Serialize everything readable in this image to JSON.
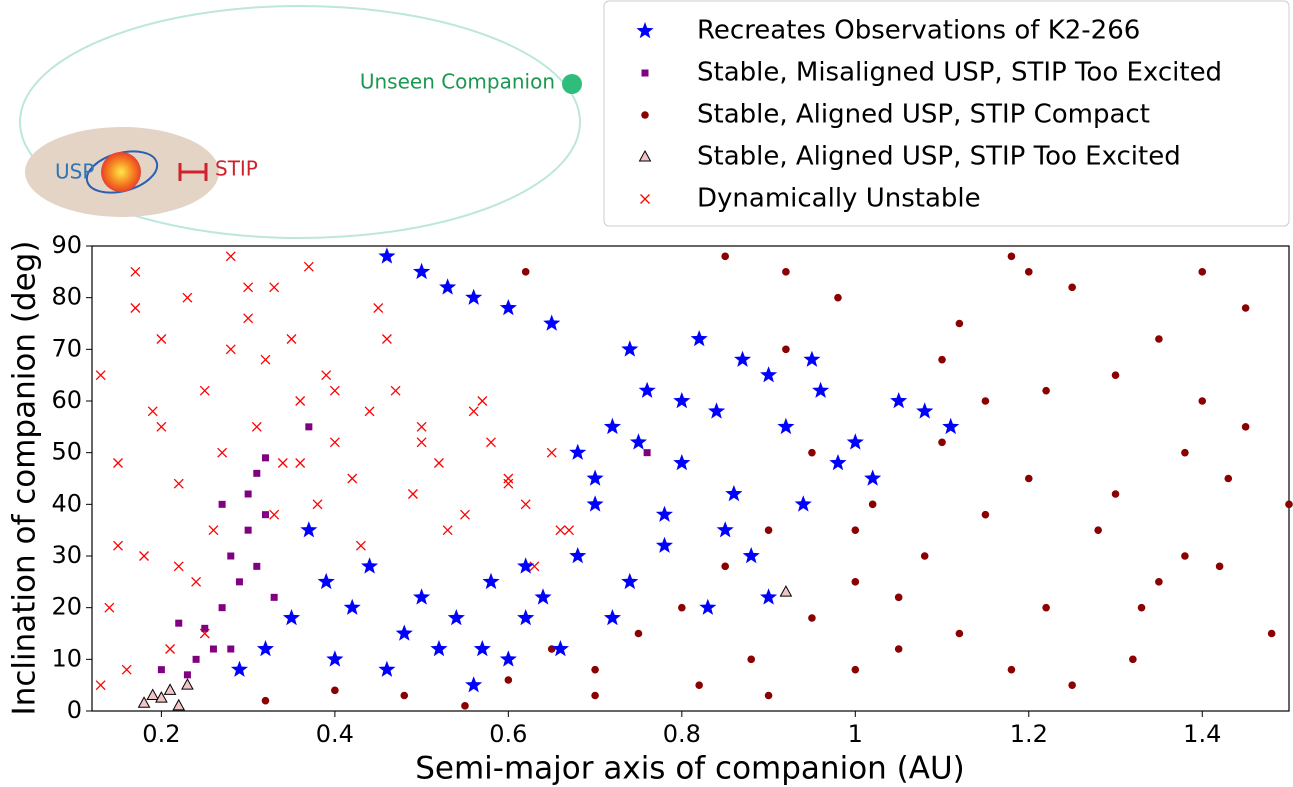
{
  "chart_data": {
    "type": "scatter",
    "xlabel": "Semi-major axis of companion (AU)",
    "ylabel": "Inclination of companion (deg)",
    "xlim": [
      0.12,
      1.5
    ],
    "ylim": [
      0,
      90
    ],
    "xticks": [
      0.2,
      0.4,
      0.6,
      0.8,
      1.0,
      1.2,
      1.4
    ],
    "yticks": [
      0,
      10,
      20,
      30,
      40,
      50,
      60,
      70,
      80,
      90
    ],
    "legend": "upper right",
    "annotations": [
      "Unseen Companion",
      "USP",
      "STIP"
    ],
    "series": [
      {
        "name": "Recreates Observations of K2-266",
        "color": "#0000ff",
        "marker": "star",
        "x": [
          0.29,
          0.32,
          0.35,
          0.37,
          0.39,
          0.4,
          0.42,
          0.44,
          0.46,
          0.48,
          0.5,
          0.52,
          0.54,
          0.56,
          0.58,
          0.6,
          0.62,
          0.64,
          0.66,
          0.68,
          0.7,
          0.72,
          0.74,
          0.76,
          0.78,
          0.8,
          0.82,
          0.84,
          0.86,
          0.88,
          0.9,
          0.92,
          0.94,
          0.96,
          0.98,
          1.0,
          1.02,
          1.05,
          1.08,
          1.11,
          0.46,
          0.5,
          0.53,
          0.56,
          0.6,
          0.65,
          0.7,
          0.74,
          0.78,
          0.83,
          0.87,
          0.72,
          0.75,
          0.8,
          0.85,
          0.9,
          0.95,
          0.68,
          0.62,
          0.57
        ],
        "y": [
          8,
          12,
          18,
          35,
          25,
          10,
          20,
          28,
          8,
          15,
          22,
          12,
          18,
          5,
          25,
          10,
          28,
          22,
          12,
          30,
          45,
          55,
          70,
          62,
          38,
          48,
          72,
          58,
          42,
          30,
          65,
          55,
          40,
          62,
          48,
          52,
          45,
          60,
          58,
          55,
          88,
          85,
          82,
          80,
          78,
          75,
          40,
          25,
          32,
          20,
          68,
          18,
          52,
          60,
          35,
          22,
          68,
          50,
          18,
          12
        ]
      },
      {
        "name": "Stable, Misaligned USP, STIP Too Excited",
        "color": "#800080",
        "marker": "square",
        "x": [
          0.2,
          0.22,
          0.23,
          0.24,
          0.25,
          0.26,
          0.27,
          0.28,
          0.29,
          0.3,
          0.3,
          0.31,
          0.32,
          0.32,
          0.33,
          0.28,
          0.27,
          0.31,
          0.37,
          0.76
        ],
        "y": [
          8,
          17,
          7,
          10,
          16,
          12,
          20,
          30,
          25,
          42,
          35,
          46,
          38,
          49,
          22,
          12,
          40,
          28,
          55,
          50
        ]
      },
      {
        "name": "Stable, Aligned USP, STIP Compact",
        "color": "#8b0000",
        "marker": "circle",
        "x": [
          0.32,
          0.4,
          0.48,
          0.55,
          0.6,
          0.65,
          0.7,
          0.75,
          0.8,
          0.82,
          0.85,
          0.88,
          0.9,
          0.92,
          0.95,
          0.98,
          1.0,
          1.02,
          1.05,
          1.08,
          1.1,
          1.12,
          1.15,
          1.18,
          1.2,
          1.22,
          1.25,
          1.28,
          1.3,
          1.32,
          1.35,
          1.38,
          1.4,
          1.42,
          1.45,
          1.48,
          1.5,
          0.9,
          0.95,
          1.0,
          1.05,
          1.1,
          1.15,
          1.2,
          1.25,
          1.3,
          1.35,
          1.4,
          1.45,
          0.7,
          0.62,
          0.85,
          1.0,
          1.12,
          1.22,
          1.33,
          1.43,
          0.92,
          1.18,
          1.38
        ],
        "y": [
          2,
          4,
          3,
          1,
          6,
          12,
          8,
          15,
          20,
          5,
          28,
          10,
          35,
          70,
          18,
          80,
          25,
          40,
          12,
          30,
          52,
          75,
          60,
          88,
          45,
          20,
          82,
          35,
          65,
          10,
          72,
          50,
          85,
          28,
          55,
          15,
          40,
          3,
          50,
          8,
          22,
          68,
          38,
          85,
          5,
          42,
          25,
          60,
          78,
          3,
          85,
          88,
          35,
          15,
          62,
          20,
          45,
          85,
          8,
          30
        ]
      },
      {
        "name": "Stable, Aligned USP, STIP Too Excited",
        "color": "#f2c4c4",
        "marker": "triangle",
        "x": [
          0.18,
          0.19,
          0.2,
          0.21,
          0.22,
          0.23,
          0.92
        ],
        "y": [
          1.5,
          3,
          2.5,
          4,
          1,
          5,
          23
        ]
      },
      {
        "name": "Dynamically Unstable",
        "color": "#ff0000",
        "marker": "x",
        "x": [
          0.13,
          0.14,
          0.15,
          0.16,
          0.17,
          0.18,
          0.19,
          0.2,
          0.21,
          0.22,
          0.23,
          0.24,
          0.25,
          0.26,
          0.27,
          0.28,
          0.3,
          0.31,
          0.32,
          0.33,
          0.34,
          0.35,
          0.36,
          0.37,
          0.38,
          0.39,
          0.4,
          0.42,
          0.44,
          0.45,
          0.47,
          0.49,
          0.5,
          0.52,
          0.55,
          0.57,
          0.58,
          0.6,
          0.62,
          0.65,
          0.67,
          0.13,
          0.15,
          0.17,
          0.2,
          0.22,
          0.25,
          0.28,
          0.3,
          0.33,
          0.36,
          0.4,
          0.43,
          0.46,
          0.5,
          0.53,
          0.56,
          0.6,
          0.63,
          0.66
        ],
        "y": [
          65,
          20,
          48,
          8,
          85,
          30,
          58,
          72,
          12,
          44,
          80,
          25,
          62,
          35,
          50,
          88,
          76,
          55,
          68,
          82,
          48,
          72,
          60,
          86,
          40,
          65,
          52,
          45,
          58,
          78,
          62,
          42,
          55,
          48,
          38,
          60,
          52,
          45,
          40,
          50,
          35,
          5,
          32,
          78,
          55,
          28,
          15,
          70,
          82,
          38,
          48,
          62,
          32,
          72,
          52,
          35,
          58,
          44,
          28,
          35
        ]
      }
    ]
  }
}
